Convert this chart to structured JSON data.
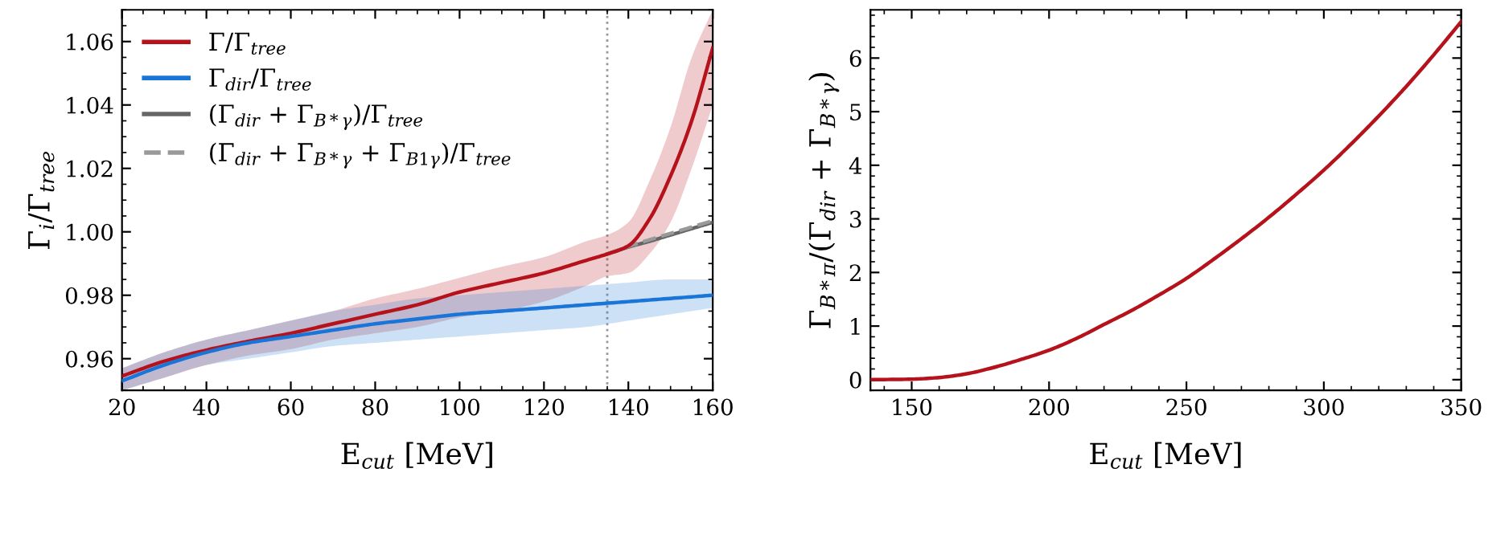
{
  "chart_data": [
    {
      "type": "line",
      "xlabel": "E$_{cut}$ [MeV]",
      "ylabel": "Γ$_{i}$/Γ$_{tree}$",
      "xlim": [
        20,
        160
      ],
      "ylim": [
        0.95,
        1.07
      ],
      "xticks": [
        20,
        40,
        60,
        80,
        100,
        120,
        140,
        160
      ],
      "yticks": [
        {
          "value": 0.96,
          "label": "0.96"
        },
        {
          "value": 0.98,
          "label": "0.98"
        },
        {
          "value": 1.0,
          "label": "1.00"
        },
        {
          "value": 1.02,
          "label": "1.02"
        },
        {
          "value": 1.04,
          "label": "1.04"
        },
        {
          "value": 1.06,
          "label": "1.06"
        }
      ],
      "legend": "top left",
      "grid": false,
      "marker": "none",
      "ref_lines": [
        {
          "axis": "x",
          "value": 135,
          "color": "#999999",
          "line_style": "dotted"
        }
      ],
      "series": [
        {
          "name": "Γ/Γ$_{tree}$",
          "color": "#b5121b",
          "x": [
            20,
            30,
            40,
            50,
            60,
            70,
            80,
            90,
            100,
            110,
            120,
            130,
            135,
            140,
            145,
            150,
            155,
            160
          ],
          "values": [
            0.9545,
            0.9592,
            0.9627,
            0.9655,
            0.968,
            0.971,
            0.974,
            0.977,
            0.981,
            0.984,
            0.987,
            0.991,
            0.993,
            0.9956,
            1.004,
            1.0176,
            1.035,
            1.058
          ],
          "lower": [
            0.95,
            0.954,
            0.958,
            0.961,
            0.963,
            0.966,
            0.968,
            0.97,
            0.973,
            0.975,
            0.978,
            0.983,
            0.986,
            0.987,
            0.993,
            1.003,
            1.02,
            1.04
          ],
          "upper": [
            0.957,
            0.962,
            0.966,
            0.969,
            0.972,
            0.975,
            0.979,
            0.982,
            0.9855,
            0.989,
            0.992,
            0.997,
            0.999,
            1.003,
            1.016,
            1.033,
            1.055,
            1.07
          ]
        },
        {
          "name": "Γ$_{dir}$/Γ$_{tree}$",
          "color": "#1a75d8",
          "x": [
            20,
            30,
            40,
            50,
            60,
            70,
            80,
            90,
            100,
            110,
            120,
            130,
            140,
            150,
            160
          ],
          "values": [
            0.953,
            0.958,
            0.962,
            0.965,
            0.967,
            0.969,
            0.971,
            0.9725,
            0.974,
            0.975,
            0.976,
            0.977,
            0.978,
            0.979,
            0.98
          ],
          "lower": [
            0.95,
            0.954,
            0.958,
            0.96,
            0.962,
            0.964,
            0.965,
            0.966,
            0.967,
            0.968,
            0.969,
            0.97,
            0.972,
            0.974,
            0.976
          ],
          "upper": [
            0.957,
            0.962,
            0.966,
            0.969,
            0.972,
            0.975,
            0.977,
            0.979,
            0.98,
            0.981,
            0.982,
            0.983,
            0.984,
            0.985,
            0.985
          ]
        },
        {
          "name": "(Γ$_{dir}$ + Γ$_{B*γ}$)/Γ$_{tree}$",
          "color": "#666666",
          "line_style": "solid",
          "x": [
            135,
            140,
            145,
            150,
            155,
            160
          ],
          "values": [
            0.993,
            0.9952,
            0.997,
            0.999,
            1.001,
            1.003
          ]
        },
        {
          "name": "(Γ$_{dir}$ + Γ$_{B*γ}$ + Γ$_{B1γ}$)/Γ$_{tree}$",
          "color": "#999999",
          "line_style": "dashed",
          "x": [
            135,
            140,
            145,
            150,
            155,
            160
          ],
          "values": [
            0.993,
            0.9954,
            0.9975,
            0.9995,
            1.0015,
            1.0035
          ]
        }
      ]
    },
    {
      "type": "line",
      "xlabel": "E$_{cut}$ [MeV]",
      "ylabel": "Γ$_{B*π}$/(Γ$_{dir}$ + Γ$_{B*γ}$)",
      "xlim": [
        135,
        350
      ],
      "ylim": [
        -0.2,
        6.9
      ],
      "xticks": [
        150,
        200,
        250,
        300,
        350
      ],
      "yticks": [
        0,
        1,
        2,
        3,
        4,
        5,
        6
      ],
      "legend": false,
      "grid": false,
      "marker": "none",
      "series": [
        {
          "color": "#b5121b",
          "x": [
            135,
            150,
            160,
            170,
            180,
            190,
            200,
            210,
            220,
            230,
            240,
            250,
            260,
            270,
            280,
            290,
            300,
            310,
            320,
            330,
            340,
            350
          ],
          "values": [
            0,
            0.01,
            0.04,
            0.11,
            0.23,
            0.38,
            0.55,
            0.77,
            1.03,
            1.29,
            1.58,
            1.89,
            2.25,
            2.63,
            3.03,
            3.46,
            3.91,
            4.4,
            4.92,
            5.47,
            6.06,
            6.68
          ]
        }
      ]
    }
  ]
}
